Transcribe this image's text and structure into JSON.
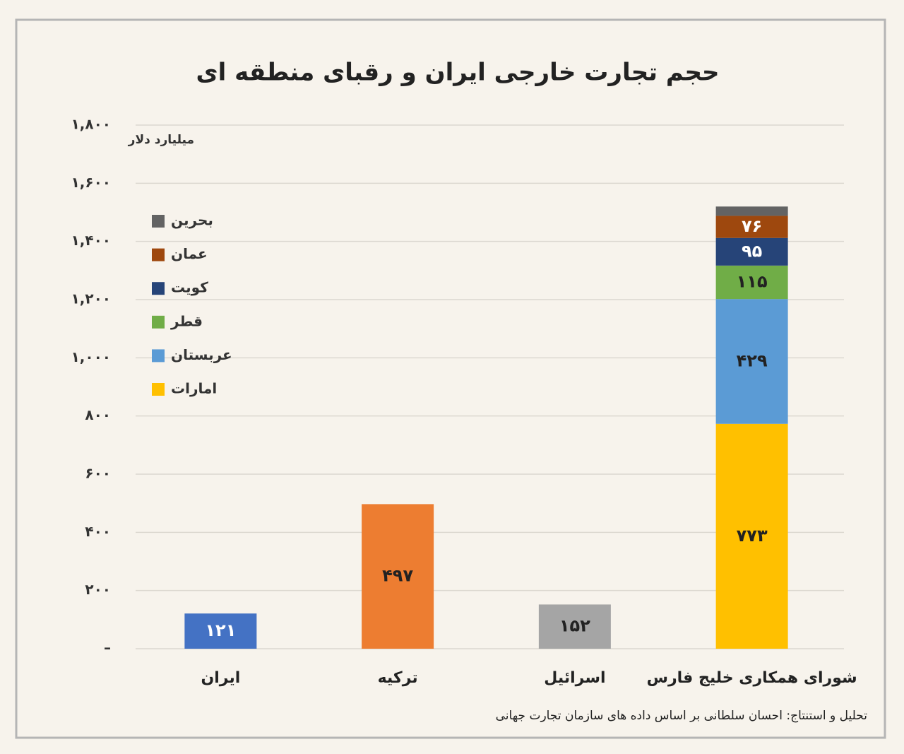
{
  "chart_data": {
    "type": "bar",
    "title": "حجم تجارت خارجی ایران و رقبای منطقه ای",
    "y_label": "میلیارد دلار",
    "source": "تحلیل و استنتاج: احسان سلطانی بر اساس داده های سازمان تجارت جهانی",
    "categories": [
      "ایران",
      "ترکیه",
      "اسرائیل",
      "شورای همکاری خلیج فارس"
    ],
    "values": [
      121,
      497,
      152,
      null
    ],
    "value_labels": [
      "۱۲۱",
      "۴۹۷",
      "۱۵۲",
      null
    ],
    "colors": [
      "#4472c4",
      "#ed7d31",
      "#a5a5a5",
      null
    ],
    "series": [
      {
        "name": "امارات",
        "color": "#ffc000",
        "values": [
          null,
          null,
          null,
          773
        ],
        "value_labels": [
          null,
          null,
          null,
          "۷۷۳"
        ]
      },
      {
        "name": "عربستان",
        "color": "#5b9bd5",
        "values": [
          null,
          null,
          null,
          429
        ],
        "value_labels": [
          null,
          null,
          null,
          "۴۲۹"
        ]
      },
      {
        "name": "قطر",
        "color": "#70ad47",
        "values": [
          null,
          null,
          null,
          115
        ],
        "value_labels": [
          null,
          null,
          null,
          "۱۱۵"
        ]
      },
      {
        "name": "کویت",
        "color": "#264478",
        "values": [
          null,
          null,
          null,
          95
        ],
        "value_labels": [
          null,
          null,
          null,
          "۹۵"
        ]
      },
      {
        "name": "عمان",
        "color": "#9e480e",
        "values": [
          null,
          null,
          null,
          76
        ],
        "value_labels": [
          null,
          null,
          null,
          "۷۶"
        ]
      },
      {
        "name": "بحرین",
        "color": "#636363",
        "values": [
          null,
          null,
          null,
          32
        ]
      }
    ],
    "ylim": [
      0,
      1800
    ],
    "yticks": [
      {
        "value": 0,
        "label": "–"
      },
      {
        "value": 200,
        "label": "۲۰۰"
      },
      {
        "value": 400,
        "label": "۴۰۰"
      },
      {
        "value": 600,
        "label": "۶۰۰"
      },
      {
        "value": 800,
        "label": "۸۰۰"
      },
      {
        "value": 1000,
        "label": "۱,۰۰۰"
      },
      {
        "value": 1200,
        "label": "۱,۲۰۰"
      },
      {
        "value": 1400,
        "label": "۱,۴۰۰"
      },
      {
        "value": 1600,
        "label": "۱,۶۰۰"
      },
      {
        "value": 1800,
        "label": "۱,۸۰۰"
      }
    ],
    "grid": true
  }
}
